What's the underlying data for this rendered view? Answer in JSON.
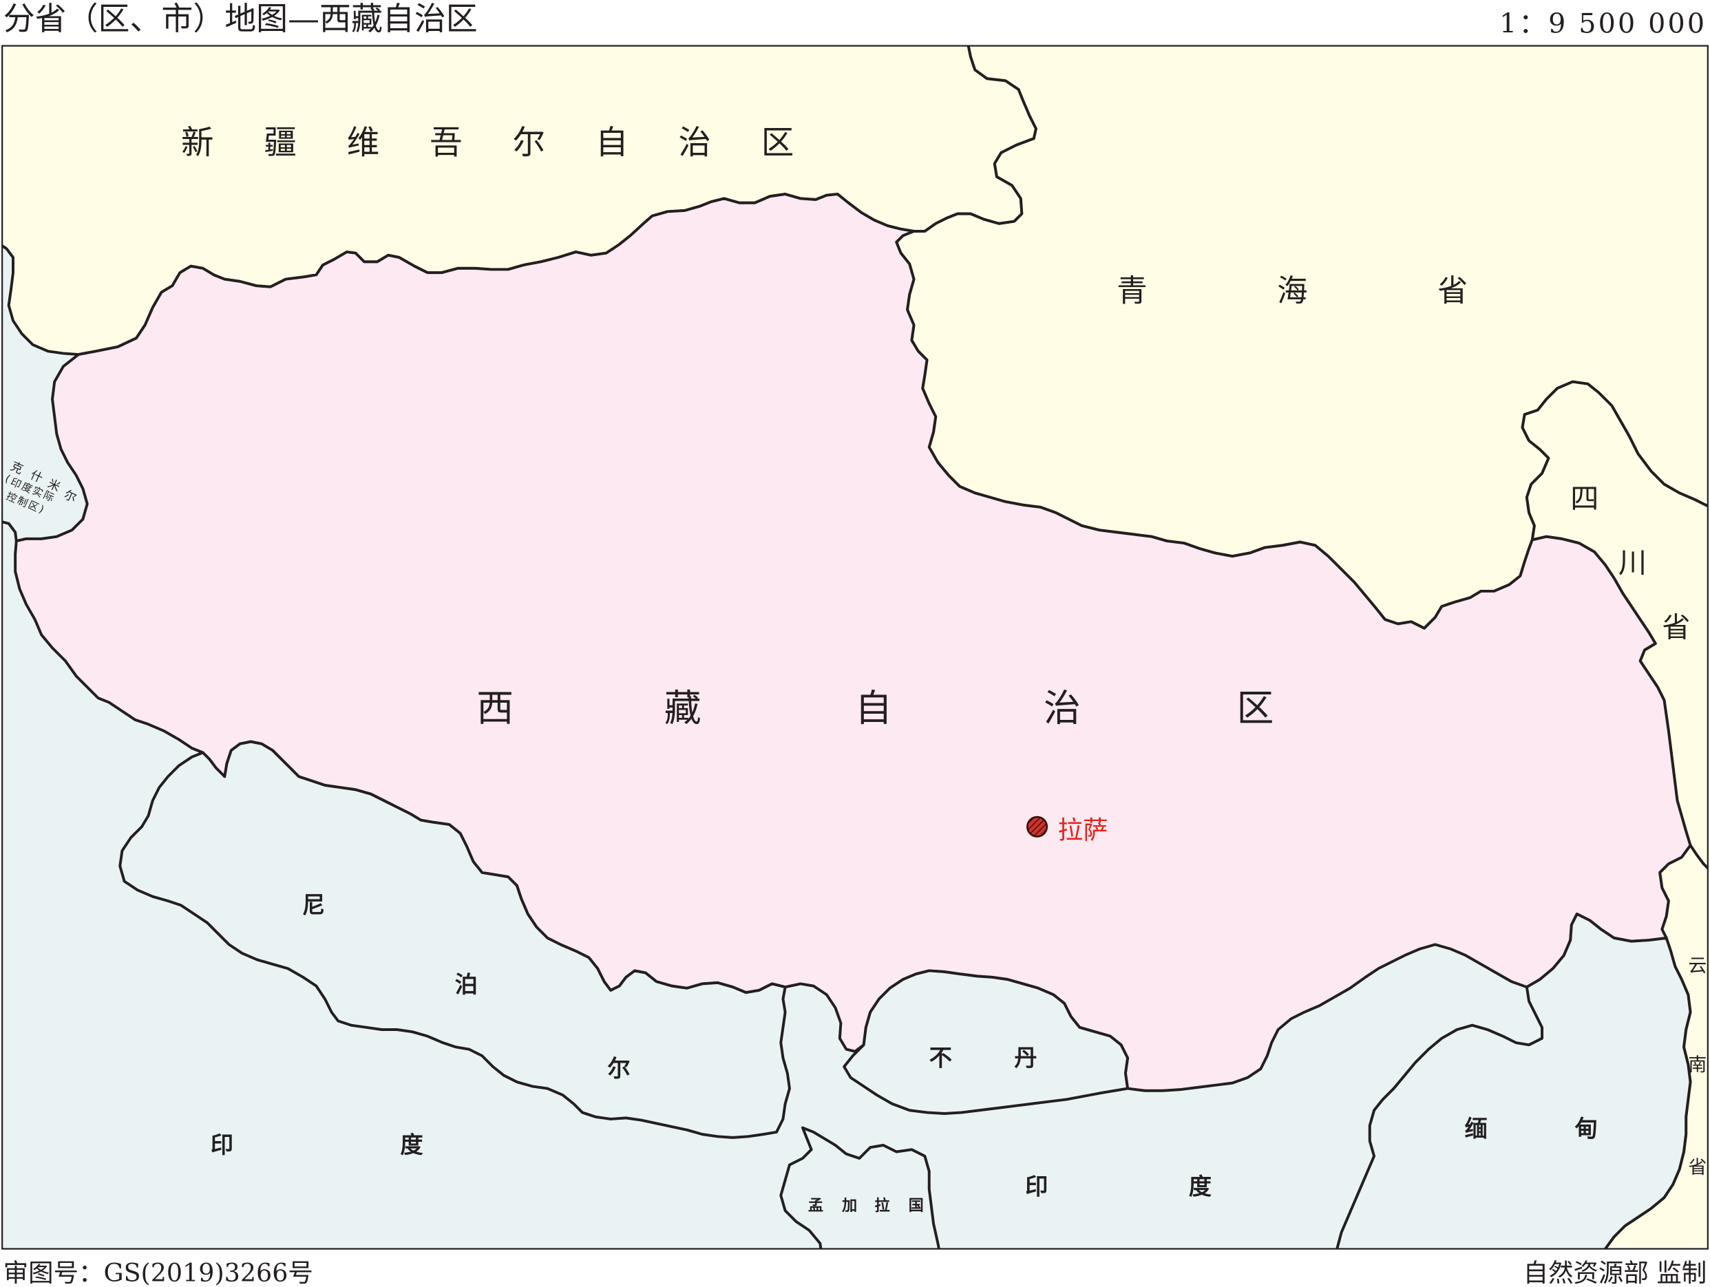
{
  "title": "分省（区、市）地图—西藏自治区",
  "scale": "1：9 500 000",
  "approval_number": "审图号：GS(2019)3266号",
  "publisher": "自然资源部 监制",
  "regions": {
    "xinjiang": "新疆维吾尔自治区",
    "qinghai": "青海省",
    "sichuan": "四川省",
    "yunnan": "云南省",
    "tibet": "西藏自治区",
    "kashmir": "克什米尔",
    "kashmir_note": "(印度实际控制区)",
    "nepal": "尼泊尔",
    "india_west": "印度",
    "bhutan": "不丹",
    "bangladesh": "孟加拉国",
    "india_east": "印度",
    "myanmar": "缅甸"
  },
  "capital": "拉萨",
  "colors": {
    "province": "#FFFDE6",
    "tibet": "#FCE9F1",
    "foreign": "#EAF3F3",
    "border": "#231F20",
    "capital": "#E1251B"
  }
}
